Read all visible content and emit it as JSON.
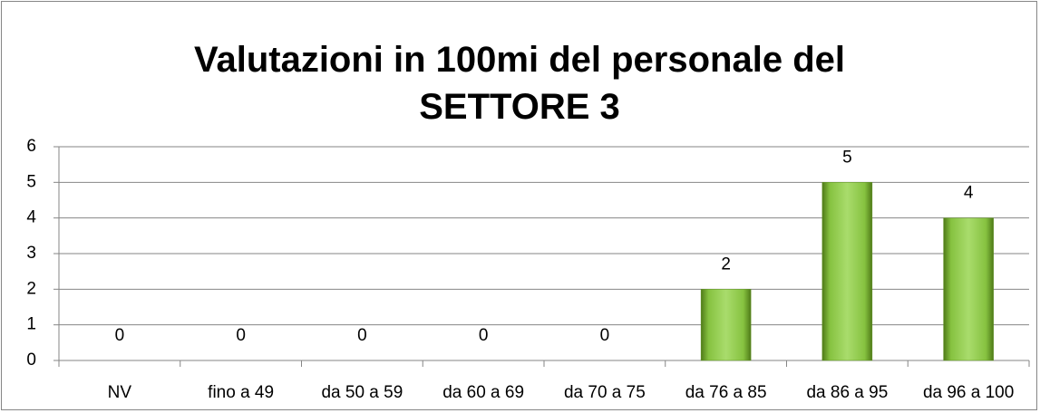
{
  "chart_data": {
    "type": "bar",
    "title": "Valutazioni in 100mi del personale del SETTORE 3",
    "categories": [
      "NV",
      "fino a 49",
      "da 50 a 59",
      "da 60 a 69",
      "da 70 a 75",
      "da 76 a 85",
      "da 86 a 95",
      "da 96 a 100"
    ],
    "values": [
      0,
      0,
      0,
      0,
      0,
      2,
      5,
      4
    ],
    "color": "#92d050",
    "ylim": [
      0,
      6
    ],
    "yticks": [
      0,
      1,
      2,
      3,
      4,
      5,
      6
    ],
    "grid": true
  }
}
